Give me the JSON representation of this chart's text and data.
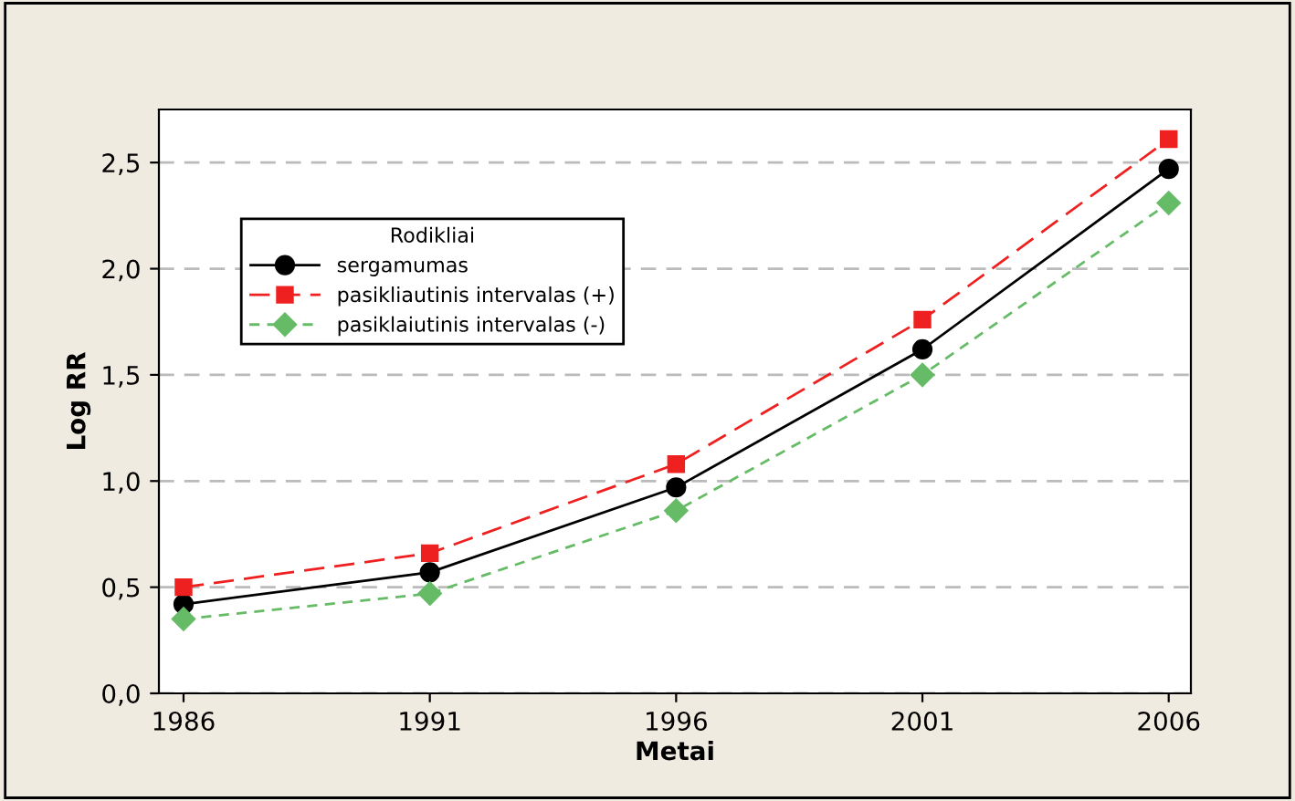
{
  "chart_data": {
    "type": "line",
    "xlabel": "Metai",
    "ylabel": "Log RR",
    "legend_title": "Rodikliai",
    "x": [
      1986,
      1991,
      1996,
      2001,
      2006
    ],
    "series": [
      {
        "name": "sergamumas",
        "color": "#000000",
        "marker": "circle",
        "line_style": "solid",
        "values": [
          0.42,
          0.57,
          0.97,
          1.62,
          2.47
        ]
      },
      {
        "name": "pasikliautinis intervalas (+)",
        "color": "#ee2020",
        "marker": "square",
        "line_style": "dashed",
        "values": [
          0.5,
          0.66,
          1.08,
          1.76,
          2.61
        ]
      },
      {
        "name": "pasiklaiutinis intervalas (-)",
        "color": "#66bb66",
        "marker": "diamond",
        "line_style": "dotted",
        "values": [
          0.35,
          0.47,
          0.86,
          1.5,
          2.31
        ]
      }
    ],
    "xlim": [
      1985.5,
      2006.45
    ],
    "xticks": [
      1986,
      1991,
      1996,
      2001,
      2006
    ],
    "ylim": [
      0,
      2.75
    ],
    "yticks": [
      {
        "value": 0,
        "label": "0,0"
      },
      {
        "value": 0.5,
        "label": "0,5"
      },
      {
        "value": 1,
        "label": "1,0"
      },
      {
        "value": 1.5,
        "label": "1,5"
      },
      {
        "value": 2,
        "label": "2,0"
      },
      {
        "value": 2.5,
        "label": "2,5"
      }
    ],
    "grid": "y",
    "legend": "top left"
  }
}
